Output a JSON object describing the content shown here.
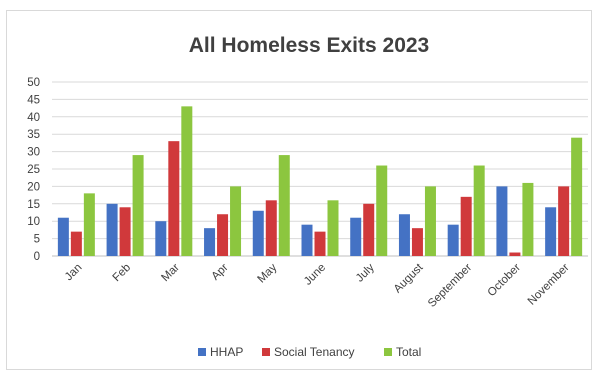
{
  "chart_data": {
    "type": "bar",
    "title": "All Homeless Exits 2023",
    "xlabel": "",
    "ylabel": "",
    "categories": [
      "Jan",
      "Feb",
      "Mar",
      "Apr",
      "May",
      "June",
      "July",
      "August",
      "September",
      "October",
      "November"
    ],
    "series": [
      {
        "name": "HHAP",
        "color": "#4472c4",
        "values": [
          11,
          15,
          10,
          8,
          13,
          9,
          11,
          12,
          9,
          20,
          14
        ]
      },
      {
        "name": "Social Tenancy",
        "color": "#d0393b",
        "values": [
          7,
          14,
          33,
          12,
          16,
          7,
          15,
          8,
          17,
          1,
          20
        ]
      },
      {
        "name": "Total",
        "color": "#8cc63f",
        "values": [
          18,
          29,
          43,
          20,
          29,
          16,
          26,
          20,
          26,
          21,
          34
        ]
      }
    ],
    "ylim": [
      0,
      50
    ],
    "yticks": [
      0,
      5,
      10,
      15,
      20,
      25,
      30,
      35,
      40,
      45,
      50
    ],
    "grid": true,
    "legend_position": "bottom"
  }
}
